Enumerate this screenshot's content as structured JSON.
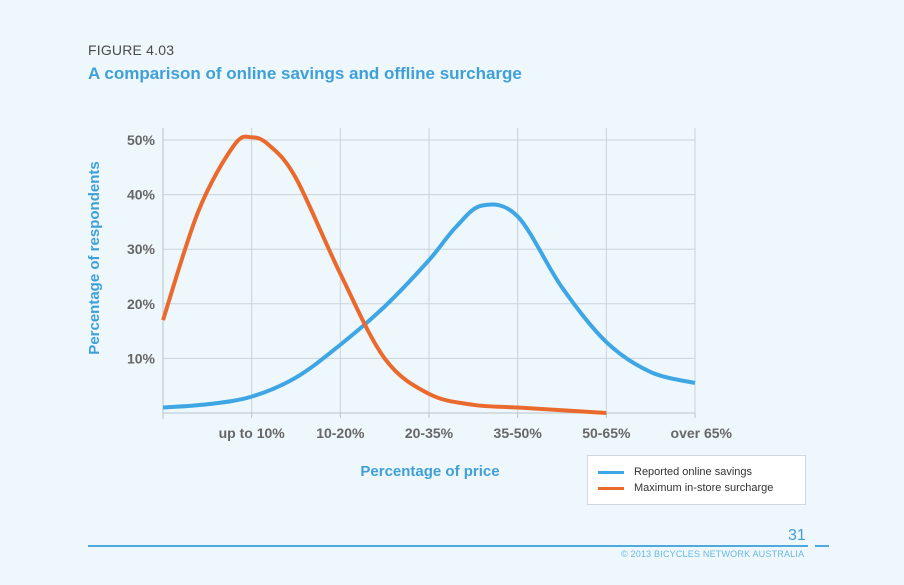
{
  "figure": {
    "number": "FIGURE 4.03",
    "title": "A comparison of online savings and offline surcharge"
  },
  "chart_data": {
    "type": "line",
    "title": "A comparison of online savings and offline surcharge",
    "xlabel": "Percentage of price",
    "ylabel": "Percentage of respondents",
    "categories": [
      "up to 10%",
      "10-20%",
      "20-35%",
      "35-50%",
      "50-65%",
      "over 65%"
    ],
    "x_range": [
      0,
      6
    ],
    "ylim": [
      0,
      50
    ],
    "y_ticks": [
      10,
      20,
      30,
      40,
      50
    ],
    "y_tick_labels": [
      "10%",
      "20%",
      "30%",
      "40%",
      "50%"
    ],
    "grid": true,
    "legend_position": "bottom-right",
    "series": [
      {
        "name": "Reported online savings",
        "color": "#3ea6e4",
        "x": [
          0,
          0.5,
          1,
          1.5,
          2,
          2.5,
          3,
          3.3,
          3.6,
          4,
          4.5,
          5,
          5.5,
          6
        ],
        "y": [
          1,
          1.6,
          3,
          6.5,
          12.5,
          19.5,
          28,
          34,
          38,
          36,
          23,
          13,
          7.5,
          5.5
        ]
      },
      {
        "name": "Maximum in-store surcharge",
        "color": "#ea6a2e",
        "x": [
          0,
          0.4,
          0.8,
          1,
          1.2,
          1.5,
          2,
          2.5,
          3,
          3.5,
          4,
          4.5,
          5
        ],
        "y": [
          17,
          37,
          49,
          50.5,
          49,
          43,
          25.5,
          10,
          3.5,
          1.5,
          1,
          0.5,
          0
        ]
      }
    ]
  },
  "legend": {
    "items": [
      {
        "label": "Reported online savings",
        "color": "#3ea6e4"
      },
      {
        "label": "Maximum in-store surcharge",
        "color": "#ea6a2e"
      }
    ]
  },
  "footer": {
    "page_number": "31",
    "copyright": "© 2013 BICYCLES NETWORK AUSTRALIA"
  }
}
